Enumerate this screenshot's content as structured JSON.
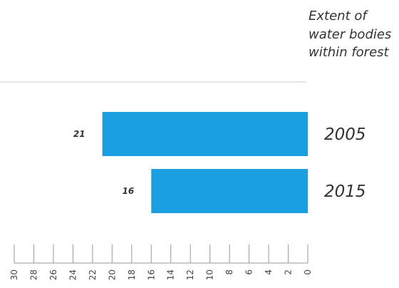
{
  "chart_data": {
    "type": "bar",
    "orientation": "horizontal",
    "x_direction": "reversed",
    "title_lines": [
      "Extent of",
      "water bodies",
      "within forest"
    ],
    "categories": [
      "2005",
      "2015"
    ],
    "values": [
      21,
      16
    ],
    "xlim": [
      0,
      30
    ],
    "x_ticks": [
      30,
      28,
      26,
      24,
      22,
      20,
      18,
      16,
      14,
      12,
      10,
      8,
      6,
      4,
      2,
      0
    ],
    "colors": {
      "bar": "#1aa0e0",
      "text": "#333333",
      "axis": "#999999"
    }
  }
}
